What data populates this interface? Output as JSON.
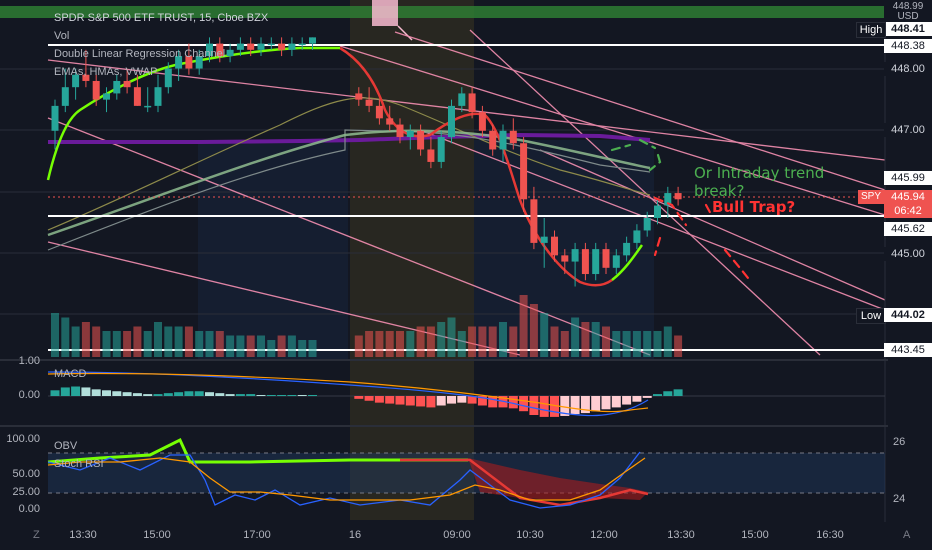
{
  "header": {
    "title": "SPDR S&P 500 ETF TRUST, 15, Cboe BZX",
    "vol": "Vol",
    "indicator_1": "Double Linear Regression Channel",
    "indicator_2": "EMAs, HMAs, VWAP"
  },
  "price_axis": {
    "currency": "USD",
    "labels": [
      "448.00",
      "447.00",
      "446.00",
      "445.00"
    ],
    "tags": {
      "top": "448.99",
      "high_label": "High",
      "high_value": "448.41",
      "line_1": "448.38",
      "last_1": "445.99",
      "symbol": "SPY",
      "last_price": "445.94",
      "countdown": "06:42",
      "line_2": "445.62",
      "low_label": "Low",
      "low_value": "444.02",
      "line_3": "443.45"
    }
  },
  "macd_pane": {
    "name": "MACD",
    "left_labels": [
      "1.00",
      "0.00"
    ]
  },
  "obv_pane": {
    "names": [
      "OBV",
      "Stoch RSI"
    ],
    "left_labels": [
      "100.00",
      "50.00",
      "25.00",
      "0.00"
    ],
    "right_labels": [
      "26",
      "24"
    ]
  },
  "time_axis": {
    "labels": [
      "13:30",
      "15:00",
      "17:00",
      "16",
      "09:00",
      "10:30",
      "12:00",
      "13:30",
      "15:00",
      "16:30"
    ],
    "left_button": "Z",
    "right_button": "A"
  },
  "annotations": {
    "green_text_line1": "Or Intraday trend",
    "green_text_line2": "break?",
    "red_text": "Bull Trap?"
  },
  "colors": {
    "background": "#131722",
    "up": "#26a69a",
    "down": "#ef5350",
    "accent_green": "#4caf50",
    "annotation_red": "#ff3333",
    "channel_pink": "#f48fb1",
    "ema_purple": "#6a1b9a"
  },
  "chart_data": {
    "type": "candlestick",
    "symbol": "SPY",
    "interval": "15",
    "ylim": [
      443.3,
      449.0
    ],
    "candles": [
      [
        446.9,
        447.4,
        446.6,
        447.3
      ],
      [
        447.3,
        447.9,
        447.2,
        447.6
      ],
      [
        447.6,
        447.9,
        447.4,
        447.8
      ],
      [
        447.8,
        448.2,
        447.6,
        447.7
      ],
      [
        447.7,
        447.8,
        447.3,
        447.4
      ],
      [
        447.4,
        447.6,
        447.2,
        447.5
      ],
      [
        447.5,
        447.8,
        447.4,
        447.7
      ],
      [
        447.7,
        447.9,
        447.5,
        447.6
      ],
      [
        447.6,
        447.8,
        447.3,
        447.3
      ],
      [
        447.3,
        447.6,
        447.2,
        447.3
      ],
      [
        447.3,
        447.8,
        447.2,
        447.6
      ],
      [
        447.6,
        448.0,
        447.5,
        447.9
      ],
      [
        447.9,
        448.2,
        447.7,
        448.1
      ],
      [
        448.1,
        448.3,
        447.8,
        447.9
      ],
      [
        447.9,
        448.2,
        447.8,
        448.1
      ],
      [
        448.1,
        448.4,
        448.0,
        448.3
      ],
      [
        448.3,
        448.4,
        448.0,
        448.1
      ],
      [
        448.1,
        448.3,
        448.0,
        448.2
      ],
      [
        448.2,
        448.4,
        448.1,
        448.3
      ],
      [
        448.3,
        448.4,
        448.1,
        448.2
      ],
      [
        448.2,
        448.4,
        448.1,
        448.3
      ],
      [
        448.3,
        448.4,
        448.2,
        448.3
      ],
      [
        448.3,
        448.4,
        448.1,
        448.2
      ],
      [
        448.2,
        448.4,
        448.1,
        448.3
      ],
      [
        448.3,
        448.4,
        448.2,
        448.3
      ],
      [
        448.3,
        448.4,
        448.2,
        448.4
      ],
      [
        447.5,
        447.6,
        447.3,
        447.4
      ],
      [
        447.4,
        447.6,
        447.2,
        447.3
      ],
      [
        447.3,
        447.4,
        447.0,
        447.1
      ],
      [
        447.1,
        447.3,
        446.9,
        447.0
      ],
      [
        447.0,
        447.1,
        446.7,
        446.8
      ],
      [
        446.8,
        447.0,
        446.6,
        446.9
      ],
      [
        446.9,
        447.0,
        446.5,
        446.6
      ],
      [
        446.6,
        446.8,
        446.3,
        446.4
      ],
      [
        446.4,
        446.9,
        446.3,
        446.8
      ],
      [
        446.8,
        447.4,
        446.7,
        447.3
      ],
      [
        447.3,
        447.6,
        447.2,
        447.5
      ],
      [
        447.5,
        447.6,
        447.1,
        447.2
      ],
      [
        447.2,
        447.3,
        446.8,
        446.9
      ],
      [
        446.9,
        447.0,
        446.5,
        446.6
      ],
      [
        446.6,
        447.0,
        446.4,
        446.9
      ],
      [
        446.9,
        447.1,
        446.6,
        446.7
      ],
      [
        446.7,
        446.8,
        445.6,
        445.8
      ],
      [
        445.8,
        446.0,
        445.0,
        445.1
      ],
      [
        445.1,
        445.5,
        444.7,
        445.2
      ],
      [
        445.2,
        445.3,
        444.8,
        444.9
      ],
      [
        444.9,
        445.0,
        444.6,
        444.8
      ],
      [
        444.8,
        445.1,
        444.4,
        445.0
      ],
      [
        445.0,
        445.1,
        444.5,
        444.6
      ],
      [
        444.6,
        445.1,
        444.5,
        445.0
      ],
      [
        445.0,
        445.1,
        444.6,
        444.7
      ],
      [
        444.7,
        445.0,
        444.6,
        444.9
      ],
      [
        444.9,
        445.2,
        444.8,
        445.1
      ],
      [
        445.1,
        445.4,
        445.0,
        445.3
      ],
      [
        445.3,
        445.6,
        445.2,
        445.5
      ],
      [
        445.5,
        445.8,
        445.4,
        445.7
      ],
      [
        445.7,
        446.0,
        445.5,
        445.9
      ],
      [
        445.9,
        446.0,
        445.7,
        445.8
      ]
    ],
    "horizontal_lines": [
      448.38,
      445.62,
      443.45
    ],
    "high": 448.41,
    "low": 444.02,
    "last": 445.94,
    "macd": {
      "ylim": [
        -0.6,
        1.0
      ],
      "histogram": [
        0.06,
        0.09,
        0.1,
        0.09,
        0.07,
        0.06,
        0.05,
        0.04,
        0.03,
        0.02,
        0.02,
        0.03,
        0.04,
        0.05,
        0.05,
        0.04,
        0.03,
        0.02,
        0.02,
        0.02,
        0.01,
        0.01,
        0.01,
        0.01,
        0.0,
        0.0,
        -0.03,
        -0.05,
        -0.07,
        -0.08,
        -0.09,
        -0.1,
        -0.11,
        -0.12,
        -0.1,
        -0.08,
        -0.07,
        -0.08,
        -0.1,
        -0.12,
        -0.12,
        -0.13,
        -0.16,
        -0.2,
        -0.22,
        -0.22,
        -0.21,
        -0.19,
        -0.18,
        -0.16,
        -0.14,
        -0.12,
        -0.09,
        -0.06,
        -0.02,
        0.02,
        0.05,
        0.07
      ]
    },
    "obv_stoch": {
      "ylim": [
        0,
        100
      ],
      "levels": [
        80,
        20
      ]
    }
  }
}
